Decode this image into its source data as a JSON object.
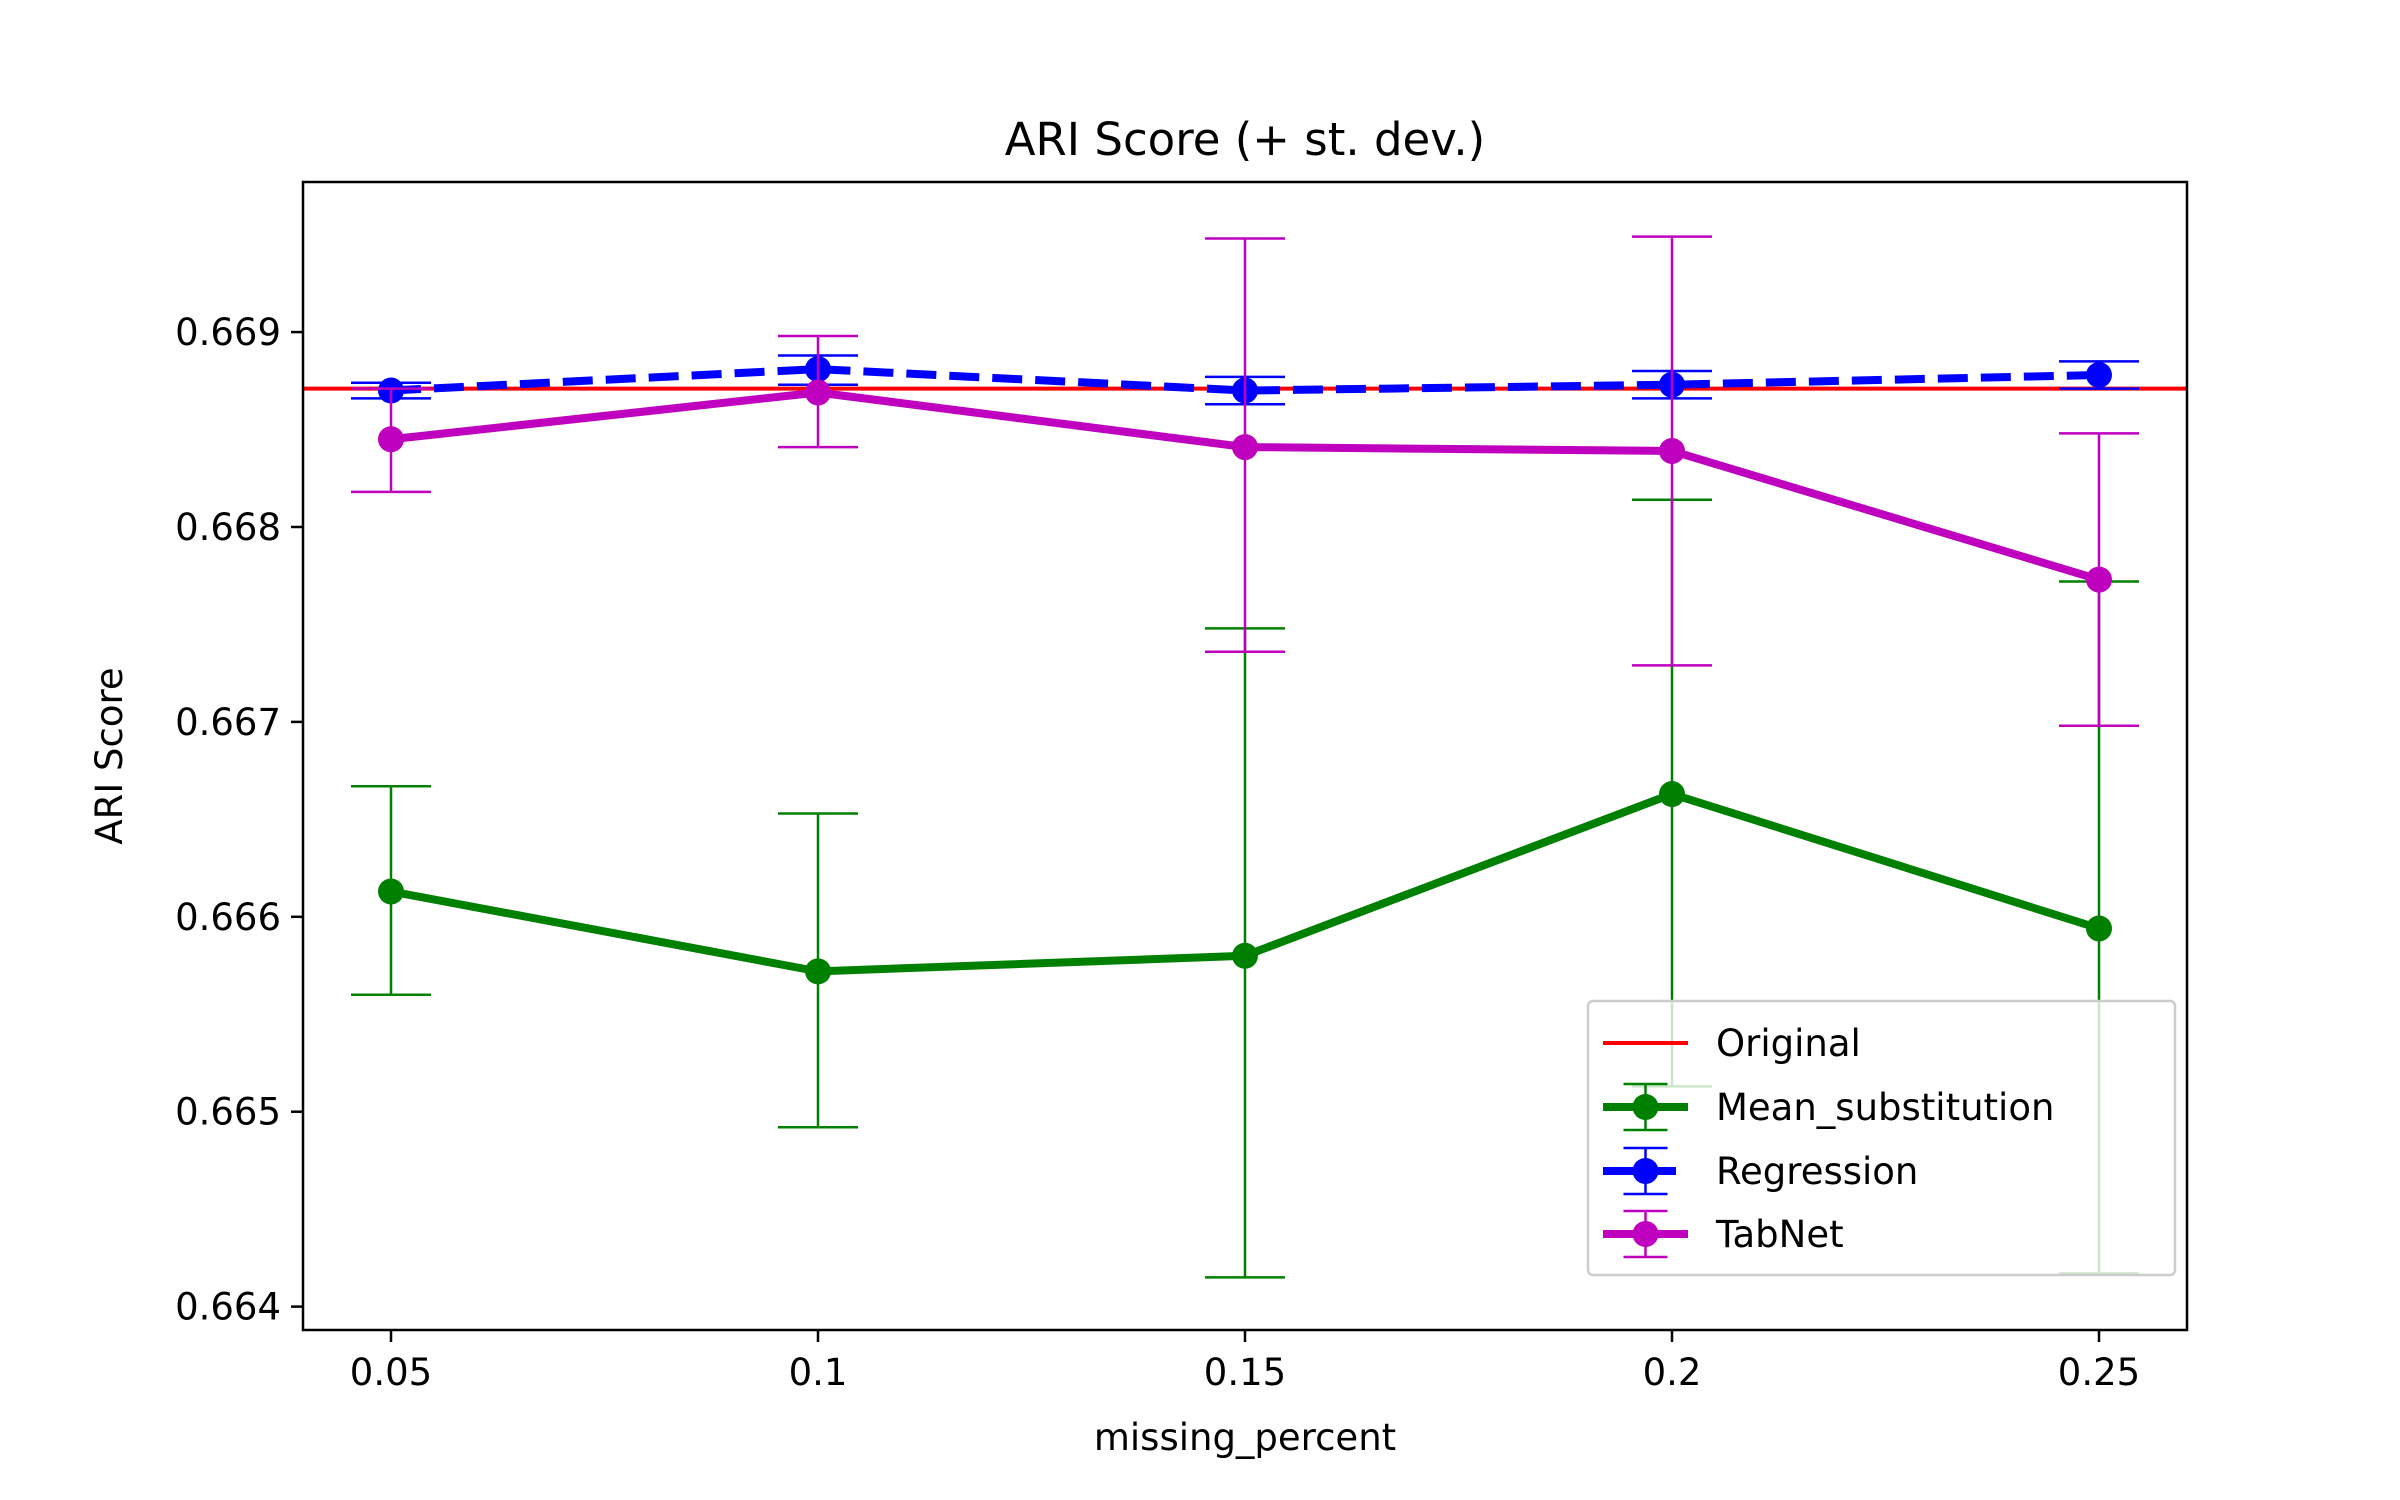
{
  "chart_data": {
    "type": "line",
    "title": "ARI Score (+ st. dev.)",
    "xlabel": "missing_percent",
    "ylabel": "ARI Score",
    "categories": [
      "0.05",
      "0.1",
      "0.15",
      "0.2",
      "0.25"
    ],
    "ylim": [
      0.66388,
      0.66977
    ],
    "yticks": [
      0.664,
      0.665,
      0.666,
      0.667,
      0.668,
      0.669
    ],
    "ytick_labels": [
      "0.664",
      "0.665",
      "0.666",
      "0.667",
      "0.668",
      "0.669"
    ],
    "legend_position": "lower-right",
    "baseline": {
      "name": "Original",
      "value": 0.66871,
      "color": "#ff0000"
    },
    "series": [
      {
        "name": "Mean_substitution",
        "color": "#008000",
        "dashed": false,
        "values": [
          0.66613,
          0.66572,
          0.6658,
          0.66663,
          0.66594
        ],
        "err_low": [
          0.6656,
          0.66492,
          0.66415,
          0.66513,
          0.66417
        ],
        "err_high": [
          0.66667,
          0.66653,
          0.66748,
          0.66814,
          0.66772
        ]
      },
      {
        "name": "Regression",
        "color": "#0000ff",
        "dashed": true,
        "values": [
          0.6687,
          0.66881,
          0.6687,
          0.66873,
          0.66878
        ],
        "err_low": [
          0.66866,
          0.66873,
          0.66863,
          0.66866,
          0.66871
        ],
        "err_high": [
          0.66874,
          0.66888,
          0.66877,
          0.6688,
          0.66885
        ]
      },
      {
        "name": "TabNet",
        "color": "#bf00bf",
        "dashed": false,
        "values": [
          0.66845,
          0.66869,
          0.66841,
          0.66839,
          0.66773
        ],
        "err_low": [
          0.66818,
          0.66841,
          0.66736,
          0.66729,
          0.66698
        ],
        "err_high": [
          0.66871,
          0.66898,
          0.66948,
          0.66949,
          0.66848
        ]
      }
    ]
  }
}
